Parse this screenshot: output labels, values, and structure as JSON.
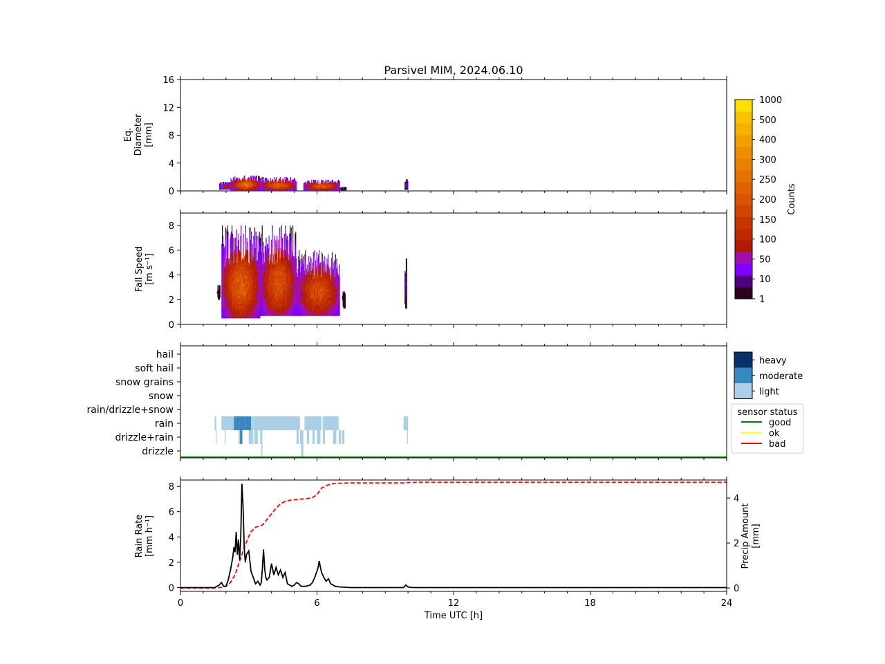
{
  "figure": {
    "title": "Parsivel MIM, 2024.06.10"
  },
  "chart_data": [
    {
      "type": "heatmap",
      "panel": "diameter",
      "ylabel_lines": [
        "Eq.",
        "Diameter",
        "[mm]"
      ],
      "ylim": [
        0,
        16
      ],
      "yticks": [
        "0",
        "4",
        "8",
        "12",
        "16"
      ],
      "xlim": [
        0,
        24
      ],
      "blobs": [
        {
          "t0": 1.7,
          "t1": 2.3,
          "d0": 0.2,
          "d1": 1.3,
          "peak": 70
        },
        {
          "t0": 2.2,
          "t1": 3.5,
          "d0": 0.1,
          "d1": 2.2,
          "peak": 210
        },
        {
          "t0": 3.5,
          "t1": 5.1,
          "d0": 0.1,
          "d1": 2.0,
          "peak": 180
        },
        {
          "t0": 5.4,
          "t1": 7.0,
          "d0": 0.1,
          "d1": 1.6,
          "peak": 170
        },
        {
          "t0": 7.0,
          "t1": 7.3,
          "d0": 0.1,
          "d1": 0.6,
          "peak": 8
        },
        {
          "t0": 9.85,
          "t1": 10.0,
          "d0": 0.2,
          "d1": 1.8,
          "peak": 15
        }
      ]
    },
    {
      "type": "heatmap",
      "panel": "fall_speed",
      "ylabel_lines": [
        "Fall Speed",
        "[m s⁻¹]"
      ],
      "ylim": [
        0,
        9
      ],
      "yticks": [
        "0",
        "2",
        "4",
        "6",
        "8"
      ],
      "xlim": [
        0,
        24
      ],
      "blobs": [
        {
          "t0": 1.6,
          "t1": 1.75,
          "v0": 2.0,
          "v1": 3.5,
          "peak": 5
        },
        {
          "t0": 1.8,
          "t1": 3.5,
          "v0": 0.5,
          "v1": 8.0,
          "peak": 180
        },
        {
          "t0": 3.5,
          "t1": 5.1,
          "v0": 0.7,
          "v1": 8.0,
          "peak": 160
        },
        {
          "t0": 5.1,
          "t1": 7.0,
          "v0": 0.7,
          "v1": 6.0,
          "peak": 150
        },
        {
          "t0": 7.1,
          "t1": 7.25,
          "v0": 1.3,
          "v1": 3.0,
          "peak": 5
        },
        {
          "t0": 9.85,
          "t1": 9.95,
          "v0": 1.3,
          "v1": 6.0,
          "peak": 10
        }
      ]
    },
    {
      "type": "table",
      "panel": "precip_type",
      "categories": [
        "drizzle",
        "drizzle+rain",
        "rain",
        "rain/drizzle+snow",
        "snow",
        "snow grains",
        "soft hail",
        "hail"
      ],
      "intensity_legend": [
        {
          "label": "heavy",
          "color": "#08306b"
        },
        {
          "label": "moderate",
          "color": "#3787c0"
        },
        {
          "label": "light",
          "color": "#abd0e6"
        }
      ],
      "sensor_status_title": "sensor status",
      "sensor_status": [
        {
          "label": "good",
          "color": "#008000"
        },
        {
          "label": "ok",
          "color": "#ffff00"
        },
        {
          "label": "bad",
          "color": "#ff0000"
        }
      ],
      "status_line": "good",
      "segments": [
        {
          "cat": "rain",
          "t0": 1.5,
          "t1": 1.57,
          "level": "light"
        },
        {
          "cat": "rain",
          "t0": 1.8,
          "t1": 2.35,
          "level": "light"
        },
        {
          "cat": "rain",
          "t0": 2.35,
          "t1": 2.45,
          "level": "moderate"
        },
        {
          "cat": "rain",
          "t0": 2.45,
          "t1": 2.6,
          "level": "moderate"
        },
        {
          "cat": "rain",
          "t0": 2.6,
          "t1": 2.85,
          "level": "moderate"
        },
        {
          "cat": "rain",
          "t0": 2.85,
          "t1": 3.1,
          "level": "moderate"
        },
        {
          "cat": "rain",
          "t0": 3.1,
          "t1": 3.2,
          "level": "light"
        },
        {
          "cat": "rain",
          "t0": 3.2,
          "t1": 5.25,
          "level": "light"
        },
        {
          "cat": "rain",
          "t0": 5.45,
          "t1": 6.2,
          "level": "light"
        },
        {
          "cat": "rain",
          "t0": 6.25,
          "t1": 6.95,
          "level": "light"
        },
        {
          "cat": "rain",
          "t0": 9.8,
          "t1": 10.0,
          "level": "light"
        },
        {
          "cat": "drizzle+rain",
          "t0": 1.55,
          "t1": 1.58,
          "level": "light"
        },
        {
          "cat": "drizzle+rain",
          "t0": 1.95,
          "t1": 1.99,
          "level": "light"
        },
        {
          "cat": "drizzle+rain",
          "t0": 2.55,
          "t1": 2.65,
          "level": "light"
        },
        {
          "cat": "drizzle+rain",
          "t0": 2.62,
          "t1": 2.72,
          "level": "moderate"
        },
        {
          "cat": "drizzle+rain",
          "t0": 3.0,
          "t1": 3.2,
          "level": "light"
        },
        {
          "cat": "drizzle+rain",
          "t0": 3.25,
          "t1": 3.4,
          "level": "light"
        },
        {
          "cat": "drizzle+rain",
          "t0": 3.5,
          "t1": 3.6,
          "level": "light"
        },
        {
          "cat": "drizzle+rain",
          "t0": 5.1,
          "t1": 5.2,
          "level": "light"
        },
        {
          "cat": "drizzle+rain",
          "t0": 5.25,
          "t1": 5.4,
          "level": "light"
        },
        {
          "cat": "drizzle+rain",
          "t0": 5.55,
          "t1": 5.65,
          "level": "light"
        },
        {
          "cat": "drizzle+rain",
          "t0": 5.8,
          "t1": 5.9,
          "level": "light"
        },
        {
          "cat": "drizzle+rain",
          "t0": 6.0,
          "t1": 6.15,
          "level": "light"
        },
        {
          "cat": "drizzle+rain",
          "t0": 6.25,
          "t1": 6.35,
          "level": "light"
        },
        {
          "cat": "drizzle+rain",
          "t0": 6.7,
          "t1": 6.85,
          "level": "light"
        },
        {
          "cat": "drizzle+rain",
          "t0": 6.95,
          "t1": 7.05,
          "level": "light"
        },
        {
          "cat": "drizzle+rain",
          "t0": 7.1,
          "t1": 7.2,
          "level": "light"
        },
        {
          "cat": "drizzle+rain",
          "t0": 9.95,
          "t1": 9.99,
          "level": "light"
        },
        {
          "cat": "drizzle",
          "t0": 3.55,
          "t1": 3.6,
          "level": "light"
        },
        {
          "cat": "drizzle",
          "t0": 5.3,
          "t1": 5.4,
          "level": "light"
        }
      ]
    },
    {
      "type": "line",
      "panel": "rain_rate",
      "ylabel_lines": [
        "Rain Rate",
        "[mm h⁻¹]"
      ],
      "ylim": [
        -0.3,
        8.5
      ],
      "yticks": [
        "0",
        "2",
        "4",
        "6",
        "8"
      ],
      "y2label_lines": [
        "Precip Amount",
        "[mm]"
      ],
      "y2lim": [
        -0.15,
        4.8
      ],
      "y2ticks": [
        "0",
        "2",
        "4"
      ],
      "xlabel": "Time UTC [h]",
      "xlim": [
        0,
        24
      ],
      "xticks": [
        "0",
        "6",
        "12",
        "18",
        "24"
      ],
      "series": [
        {
          "role": "rain_rate",
          "color": "#000000",
          "dash": "solid",
          "x": [
            0,
            1.5,
            1.7,
            1.8,
            1.9,
            2.0,
            2.1,
            2.2,
            2.3,
            2.35,
            2.4,
            2.45,
            2.5,
            2.55,
            2.6,
            2.65,
            2.7,
            2.75,
            2.8,
            2.85,
            2.9,
            3.0,
            3.1,
            3.2,
            3.3,
            3.4,
            3.5,
            3.55,
            3.6,
            3.65,
            3.7,
            3.75,
            3.8,
            3.9,
            4.0,
            4.1,
            4.2,
            4.3,
            4.4,
            4.5,
            4.6,
            4.7,
            4.8,
            4.9,
            5.0,
            5.1,
            5.2,
            5.3,
            5.5,
            5.7,
            5.8,
            5.9,
            6.0,
            6.05,
            6.1,
            6.15,
            6.2,
            6.3,
            6.4,
            6.5,
            6.6,
            6.8,
            7.0,
            7.5,
            9.8,
            9.9,
            10.0,
            10.2,
            24
          ],
          "y": [
            0,
            0.0,
            0.2,
            0.4,
            0.1,
            0.1,
            0.6,
            1.4,
            2.4,
            3.2,
            2.8,
            4.4,
            2.6,
            3.8,
            2.2,
            4.0,
            8.2,
            6.5,
            3.2,
            2.0,
            2.6,
            2.9,
            1.3,
            0.8,
            0.3,
            0.5,
            0.2,
            0.4,
            1.5,
            3.0,
            1.5,
            0.8,
            0.6,
            0.8,
            1.9,
            1.0,
            1.6,
            1.0,
            1.4,
            0.8,
            1.2,
            0.3,
            0.2,
            0.1,
            0.2,
            0.4,
            0.3,
            0.1,
            0.1,
            0.2,
            0.4,
            0.8,
            1.3,
            1.6,
            2.1,
            1.6,
            1.2,
            0.8,
            0.5,
            0.7,
            0.3,
            0.1,
            0.05,
            0.0,
            0.0,
            0.2,
            0.05,
            0.0,
            0.0
          ]
        },
        {
          "role": "precip_amount",
          "color": "#ff0000",
          "dash": "dashed",
          "axis": "right",
          "x": [
            0,
            1.5,
            1.8,
            2.0,
            2.2,
            2.4,
            2.6,
            2.8,
            3.0,
            3.1,
            3.3,
            3.6,
            3.8,
            4.0,
            4.2,
            4.4,
            4.6,
            4.8,
            5.0,
            5.2,
            5.5,
            5.8,
            6.0,
            6.1,
            6.2,
            6.4,
            6.6,
            6.8,
            7.0,
            7.5,
            9.8,
            10.0,
            10.5,
            24
          ],
          "y": [
            0,
            0.0,
            0.03,
            0.08,
            0.25,
            0.6,
            1.2,
            1.8,
            2.3,
            2.5,
            2.7,
            2.8,
            3.05,
            3.3,
            3.55,
            3.75,
            3.85,
            3.9,
            3.92,
            3.95,
            3.96,
            4.02,
            4.15,
            4.3,
            4.45,
            4.55,
            4.62,
            4.65,
            4.66,
            4.67,
            4.67,
            4.69,
            4.7,
            4.7
          ]
        }
      ]
    }
  ],
  "colorbar": {
    "label": "Counts",
    "ticks": [
      "1",
      "10",
      "50",
      "100",
      "150",
      "200",
      "250",
      "300",
      "400",
      "500",
      "1000"
    ],
    "colors": [
      "#2c001e",
      "#50007a",
      "#8000ff",
      "#a010b0",
      "#b01c00",
      "#bf2800",
      "#c83600",
      "#d24400",
      "#d85400",
      "#de6300",
      "#e47100",
      "#e98000",
      "#ee8f00",
      "#f2a000",
      "#f6b000",
      "#f8c200",
      "#fde200"
    ]
  }
}
